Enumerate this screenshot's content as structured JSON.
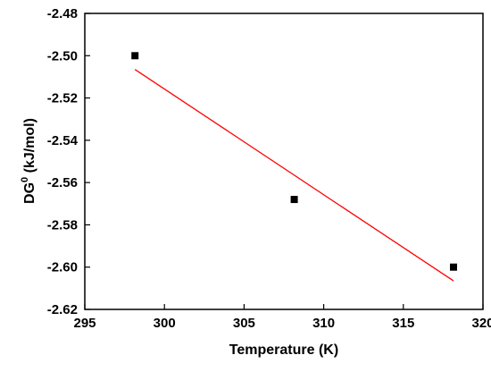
{
  "chart_data": {
    "type": "scatter",
    "title": "",
    "xlabel": "Temperature (K)",
    "ylabel_main": "DG",
    "ylabel_sup": "0",
    "ylabel_unit": " (kJ/mol)",
    "xlim": [
      295,
      320
    ],
    "ylim": [
      -2.62,
      -2.48
    ],
    "x_ticks": [
      "295",
      "300",
      "305",
      "310",
      "315",
      "320"
    ],
    "y_ticks": [
      "-2.48",
      "-2.50",
      "-2.52",
      "-2.54",
      "-2.56",
      "-2.58",
      "-2.60",
      "-2.62"
    ],
    "grid": false,
    "legend": "none",
    "series": [
      {
        "type": "scatter",
        "marker": "square",
        "color": "#000000",
        "points": [
          {
            "x": 298.15,
            "y": -2.5
          },
          {
            "x": 308.15,
            "y": -2.568
          },
          {
            "x": 318.15,
            "y": -2.6
          }
        ]
      },
      {
        "type": "line",
        "color": "#ff0000",
        "points": [
          {
            "x": 298.15,
            "y": -2.5065
          },
          {
            "x": 318.15,
            "y": -2.6065
          }
        ]
      }
    ]
  }
}
